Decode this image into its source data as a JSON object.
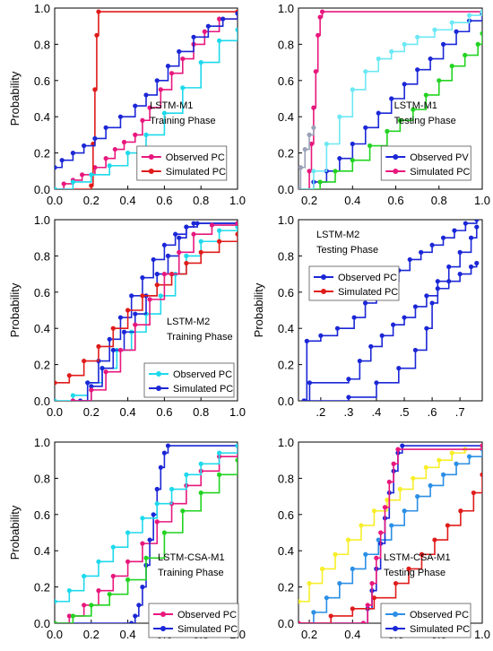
{
  "figure": {
    "background": "#ffffff"
  },
  "chart_data": [
    {
      "type": "line",
      "title": "LSTM-M1",
      "subtitle": "Training Phase",
      "ylabel": "Probability",
      "xlim": [
        0.0,
        1.0
      ],
      "ylim": [
        0.0,
        1.0
      ],
      "x_ticks": [
        "0.0",
        "0.2",
        "0.4",
        "0.6",
        "0.8",
        "1.0"
      ],
      "y_ticks": [
        "0.0",
        "0.2",
        "0.4",
        "0.6",
        "0.8",
        "1.0"
      ],
      "grid": false,
      "legend_position": "lower-right",
      "legend": [
        {
          "label": "Observed PC",
          "color": "#e8177d"
        },
        {
          "label": "Simulated PC",
          "color": "#e01b1b"
        }
      ],
      "series": [
        {
          "name": "Observed PC",
          "color": "#e8177d",
          "x": [
            0.0,
            0.05,
            0.1,
            0.15,
            0.22,
            0.28,
            0.33,
            0.38,
            0.44,
            0.48,
            0.52,
            0.58,
            0.64,
            0.7,
            0.76,
            0.82,
            0.9,
            1.0
          ],
          "y": [
            0.0,
            0.03,
            0.05,
            0.08,
            0.12,
            0.17,
            0.22,
            0.26,
            0.3,
            0.38,
            0.45,
            0.55,
            0.64,
            0.72,
            0.8,
            0.87,
            0.94,
            0.97
          ]
        },
        {
          "name": "Simulated PC",
          "color": "#e01b1b",
          "x": [
            0.0,
            0.2,
            0.21,
            0.22,
            0.23,
            0.24,
            1.0
          ],
          "y": [
            0.0,
            0.02,
            0.25,
            0.55,
            0.85,
            0.98,
            0.98
          ]
        },
        {
          "name": "",
          "color": "#1b27d6",
          "x": [
            0.0,
            0.04,
            0.1,
            0.16,
            0.22,
            0.28,
            0.36,
            0.44,
            0.5,
            0.56,
            0.62,
            0.68,
            0.76,
            0.84,
            0.92,
            1.0
          ],
          "y": [
            0.12,
            0.16,
            0.2,
            0.24,
            0.28,
            0.34,
            0.4,
            0.46,
            0.52,
            0.6,
            0.68,
            0.76,
            0.84,
            0.9,
            0.94,
            0.97
          ]
        },
        {
          "name": "",
          "color": "#1ed9ec",
          "x": [
            0.0,
            0.1,
            0.2,
            0.3,
            0.4,
            0.5,
            0.6,
            0.7,
            0.8,
            0.9,
            1.0
          ],
          "y": [
            0.0,
            0.04,
            0.08,
            0.13,
            0.2,
            0.3,
            0.42,
            0.56,
            0.7,
            0.82,
            0.88
          ]
        }
      ]
    },
    {
      "type": "line",
      "title": "LSTM-M1",
      "subtitle": "Testing Phase",
      "ylabel": "",
      "xlim": [
        0.15,
        1.0
      ],
      "ylim": [
        0.0,
        1.0
      ],
      "x_ticks": [
        "0.2",
        "0.4",
        "0.6",
        "0.8",
        "1.0"
      ],
      "y_ticks": [
        "0.0",
        "0.2",
        "0.4",
        "0.6",
        "0.8",
        "1.0"
      ],
      "grid": false,
      "legend_position": "lower-right",
      "legend": [
        {
          "label": "Observed PV",
          "color": "#1b27d6"
        },
        {
          "label": "Simulated PC",
          "color": "#e8177d"
        }
      ],
      "series": [
        {
          "name": "Observed PV",
          "color": "#1b27d6",
          "x": [
            0.15,
            0.22,
            0.28,
            0.34,
            0.4,
            0.46,
            0.52,
            0.58,
            0.64,
            0.7,
            0.76,
            0.82,
            0.88,
            0.94,
            1.0
          ],
          "y": [
            0.0,
            0.04,
            0.1,
            0.17,
            0.25,
            0.34,
            0.42,
            0.5,
            0.58,
            0.66,
            0.72,
            0.8,
            0.87,
            0.93,
            0.97
          ]
        },
        {
          "name": "Simulated PC",
          "color": "#e8177d",
          "x": [
            0.15,
            0.2,
            0.21,
            0.22,
            0.23,
            0.24,
            0.25,
            0.26,
            1.0
          ],
          "y": [
            0.0,
            0.1,
            0.25,
            0.45,
            0.65,
            0.85,
            0.95,
            0.98,
            0.98
          ]
        },
        {
          "name": "",
          "color": "#22d322",
          "x": [
            0.15,
            0.25,
            0.32,
            0.4,
            0.48,
            0.56,
            0.62,
            0.68,
            0.74,
            0.8,
            0.86,
            0.92,
            0.98,
            1.0
          ],
          "y": [
            0.0,
            0.04,
            0.1,
            0.16,
            0.24,
            0.32,
            0.38,
            0.44,
            0.52,
            0.6,
            0.68,
            0.74,
            0.8,
            0.86
          ]
        },
        {
          "name": "",
          "color": "#6ce8f4",
          "x": [
            0.15,
            0.22,
            0.28,
            0.34,
            0.4,
            0.46,
            0.52,
            0.58,
            0.64,
            0.7,
            0.78,
            0.86,
            0.94,
            1.0
          ],
          "y": [
            0.0,
            0.1,
            0.25,
            0.4,
            0.55,
            0.65,
            0.72,
            0.76,
            0.8,
            0.84,
            0.88,
            0.92,
            0.96,
            0.98
          ]
        },
        {
          "name": "",
          "color": "#9aa0b8",
          "x": [
            0.15,
            0.16,
            0.18,
            0.2,
            0.22
          ],
          "y": [
            0.0,
            0.12,
            0.22,
            0.3,
            0.34
          ]
        }
      ]
    },
    {
      "type": "line",
      "title": "LSTM-M2",
      "subtitle": "Training Phase",
      "ylabel": "Probability",
      "xlim": [
        0.0,
        1.0
      ],
      "ylim": [
        0.0,
        1.0
      ],
      "x_ticks": [
        "0.0",
        "0.2",
        "0.4",
        "0.6",
        "0.8",
        "1.0"
      ],
      "y_ticks": [
        "0.0",
        "0.2",
        "0.4",
        "0.6",
        "0.8",
        "1.0"
      ],
      "grid": false,
      "legend_position": "lower-right",
      "legend": [
        {
          "label": "Observed PC",
          "color": "#1ed9ec"
        },
        {
          "label": "Simulated PC",
          "color": "#1b27d6"
        }
      ],
      "series": [
        {
          "name": "Observed PC",
          "color": "#1ed9ec",
          "x": [
            0.0,
            0.1,
            0.18,
            0.26,
            0.34,
            0.42,
            0.5,
            0.58,
            0.66,
            0.72,
            0.8,
            0.9,
            1.0
          ],
          "y": [
            0.0,
            0.03,
            0.1,
            0.18,
            0.28,
            0.38,
            0.48,
            0.58,
            0.7,
            0.8,
            0.88,
            0.94,
            0.96
          ]
        },
        {
          "name": "Simulated PC",
          "color": "#1b27d6",
          "x": [
            0.14,
            0.2,
            0.26,
            0.32,
            0.38,
            0.44,
            0.5,
            0.56,
            0.62,
            0.68,
            0.72,
            0.76,
            1.0
          ],
          "y": [
            0.0,
            0.08,
            0.18,
            0.28,
            0.38,
            0.48,
            0.58,
            0.7,
            0.8,
            0.9,
            0.96,
            0.98,
            0.98
          ]
        },
        {
          "name": "",
          "color": "#1b27d6",
          "x": [
            0.1,
            0.18,
            0.24,
            0.3,
            0.36,
            0.42,
            0.48,
            0.54,
            0.6,
            0.66,
            0.72,
            0.78,
            1.0
          ],
          "y": [
            0.0,
            0.1,
            0.22,
            0.34,
            0.46,
            0.58,
            0.68,
            0.78,
            0.86,
            0.92,
            0.96,
            0.98,
            0.98
          ]
        },
        {
          "name": "",
          "color": "#e01b1b",
          "x": [
            0.0,
            0.08,
            0.16,
            0.24,
            0.32,
            0.4,
            0.48,
            0.56,
            0.64,
            0.72,
            0.8,
            0.9,
            1.0
          ],
          "y": [
            0.1,
            0.14,
            0.22,
            0.3,
            0.4,
            0.5,
            0.58,
            0.64,
            0.7,
            0.76,
            0.82,
            0.88,
            0.92
          ]
        },
        {
          "name": "",
          "color": "#e8177d",
          "x": [
            0.1,
            0.2,
            0.28,
            0.36,
            0.44,
            0.52,
            0.6,
            0.68,
            0.76,
            0.86,
            1.0
          ],
          "y": [
            0.0,
            0.06,
            0.16,
            0.28,
            0.42,
            0.56,
            0.7,
            0.82,
            0.92,
            0.97,
            0.98
          ]
        }
      ]
    },
    {
      "type": "line",
      "title": "LSTM-M2",
      "subtitle": "Testing Phase",
      "ylabel": "Probability",
      "xlim": [
        0.12,
        0.78
      ],
      "ylim": [
        0.0,
        1.0
      ],
      "x_ticks": [
        ".2",
        ".3",
        ".4",
        ".5",
        ".6",
        ".7"
      ],
      "y_ticks": [
        "0.0",
        "0.2",
        "0.4",
        "0.6",
        "0.8",
        "1.0"
      ],
      "grid": false,
      "legend_position": "top-left",
      "legend": [
        {
          "label": "Observed PC",
          "color": "#1b27d6"
        },
        {
          "label": "Simulated PC",
          "color": "#e01b1b"
        }
      ],
      "series": [
        {
          "name": "Observed PC",
          "color": "#1b27d6",
          "x": [
            0.14,
            0.15,
            0.2,
            0.26,
            0.32,
            0.36,
            0.4,
            0.44,
            0.48,
            0.52,
            0.56,
            0.6,
            0.64,
            0.68,
            0.72,
            0.76
          ],
          "y": [
            0.0,
            0.33,
            0.36,
            0.4,
            0.46,
            0.54,
            0.6,
            0.66,
            0.72,
            0.78,
            0.82,
            0.86,
            0.9,
            0.94,
            0.98,
            1.0
          ]
        },
        {
          "name": "",
          "color": "#1b27d6",
          "x": [
            0.14,
            0.16,
            0.3,
            0.34,
            0.38,
            0.42,
            0.46,
            0.5,
            0.54,
            0.58,
            0.62,
            0.66,
            0.7,
            0.74,
            0.76
          ],
          "y": [
            0.0,
            0.1,
            0.12,
            0.22,
            0.3,
            0.36,
            0.42,
            0.46,
            0.52,
            0.58,
            0.66,
            0.74,
            0.82,
            0.9,
            0.96
          ]
        },
        {
          "name": "",
          "color": "#1b27d6",
          "x": [
            0.14,
            0.3,
            0.4,
            0.48,
            0.54,
            0.58,
            0.6,
            0.62,
            0.66,
            0.7,
            0.74,
            0.76
          ],
          "y": [
            0.0,
            0.02,
            0.1,
            0.18,
            0.28,
            0.4,
            0.54,
            0.62,
            0.66,
            0.7,
            0.74,
            0.76
          ]
        }
      ]
    },
    {
      "type": "line",
      "title": "LSTM-CSA-M1",
      "subtitle": "Training Phase",
      "ylabel": "Probability",
      "xlim": [
        0.0,
        1.0
      ],
      "ylim": [
        0.0,
        1.0
      ],
      "x_ticks": [
        "0.0",
        "0.2",
        "0.4",
        "0.6",
        "0.8",
        "1.0"
      ],
      "y_ticks": [
        "0.0",
        "0.2",
        "0.4",
        "0.6",
        "0.8",
        "1.0"
      ],
      "grid": false,
      "legend_position": "lower-right",
      "legend": [
        {
          "label": "Observed PC",
          "color": "#e8177d"
        },
        {
          "label": "Simulated PC",
          "color": "#1b27d6"
        }
      ],
      "series": [
        {
          "name": "Observed PC",
          "color": "#e8177d",
          "x": [
            0.0,
            0.08,
            0.16,
            0.24,
            0.32,
            0.4,
            0.48,
            0.56,
            0.64,
            0.72,
            0.8,
            0.9,
            1.0
          ],
          "y": [
            0.0,
            0.04,
            0.1,
            0.18,
            0.26,
            0.34,
            0.44,
            0.56,
            0.66,
            0.76,
            0.84,
            0.92,
            0.98
          ]
        },
        {
          "name": "Simulated PC",
          "color": "#1b27d6",
          "x": [
            0.0,
            0.42,
            0.44,
            0.46,
            0.48,
            0.5,
            0.52,
            0.54,
            0.56,
            0.58,
            0.6,
            0.62,
            1.0
          ],
          "y": [
            0.0,
            0.0,
            0.04,
            0.1,
            0.2,
            0.32,
            0.46,
            0.6,
            0.74,
            0.86,
            0.94,
            0.98,
            0.98
          ]
        },
        {
          "name": "",
          "color": "#1ed9ec",
          "x": [
            0.0,
            0.08,
            0.16,
            0.24,
            0.32,
            0.4,
            0.48,
            0.56,
            0.64,
            0.72,
            0.8,
            0.9,
            1.0
          ],
          "y": [
            0.12,
            0.18,
            0.26,
            0.34,
            0.42,
            0.5,
            0.58,
            0.66,
            0.74,
            0.82,
            0.88,
            0.94,
            0.98
          ]
        },
        {
          "name": "",
          "color": "#22d322",
          "x": [
            0.0,
            0.1,
            0.2,
            0.3,
            0.4,
            0.5,
            0.6,
            0.7,
            0.8,
            0.9,
            1.0
          ],
          "y": [
            0.0,
            0.04,
            0.1,
            0.16,
            0.24,
            0.36,
            0.5,
            0.62,
            0.72,
            0.82,
            0.9
          ]
        }
      ]
    },
    {
      "type": "line",
      "title": "LSTM-CSA-M1",
      "subtitle": "Testing Phase",
      "ylabel": "",
      "xlim": [
        0.15,
        1.0
      ],
      "ylim": [
        0.0,
        1.0
      ],
      "x_ticks": [
        "0.2",
        "0.4",
        "0.6",
        "0.8",
        "1.0"
      ],
      "y_ticks": [
        "0.0",
        "0.2",
        "0.4",
        "0.6",
        "0.8",
        "1.0"
      ],
      "grid": false,
      "legend_position": "lower-right",
      "legend": [
        {
          "label": "Observed PC",
          "color": "#2b8fe6"
        },
        {
          "label": "Simulated PC",
          "color": "#1b27d6"
        }
      ],
      "series": [
        {
          "name": "Observed PC",
          "color": "#2b8fe6",
          "x": [
            0.15,
            0.22,
            0.28,
            0.34,
            0.4,
            0.46,
            0.52,
            0.58,
            0.64,
            0.7,
            0.76,
            0.82,
            0.88,
            0.94,
            1.0
          ],
          "y": [
            0.0,
            0.06,
            0.14,
            0.22,
            0.3,
            0.38,
            0.46,
            0.54,
            0.62,
            0.7,
            0.76,
            0.82,
            0.88,
            0.92,
            0.96
          ]
        },
        {
          "name": "Simulated PC",
          "color": "#1b27d6",
          "x": [
            0.15,
            0.45,
            0.47,
            0.49,
            0.51,
            0.53,
            0.55,
            0.57,
            0.59,
            0.61,
            0.63,
            1.0
          ],
          "y": [
            0.0,
            0.0,
            0.08,
            0.18,
            0.3,
            0.44,
            0.58,
            0.72,
            0.84,
            0.94,
            0.98,
            0.98
          ]
        },
        {
          "name": "",
          "color": "#f7ee2a",
          "x": [
            0.15,
            0.2,
            0.26,
            0.32,
            0.38,
            0.44,
            0.5,
            0.56,
            0.62,
            0.68,
            0.74,
            0.8,
            0.86,
            0.92,
            1.0
          ],
          "y": [
            0.12,
            0.22,
            0.3,
            0.38,
            0.46,
            0.54,
            0.62,
            0.68,
            0.74,
            0.8,
            0.86,
            0.9,
            0.94,
            0.96,
            0.98
          ]
        },
        {
          "name": "",
          "color": "#e01b1b",
          "x": [
            0.15,
            0.3,
            0.4,
            0.5,
            0.6,
            0.66,
            0.72,
            0.78,
            0.84,
            0.9,
            0.96,
            1.0
          ],
          "y": [
            0.0,
            0.04,
            0.08,
            0.14,
            0.22,
            0.3,
            0.38,
            0.46,
            0.54,
            0.62,
            0.72,
            0.82
          ]
        },
        {
          "name": "",
          "color": "#e8177d",
          "x": [
            0.15,
            0.45,
            0.47,
            0.49,
            0.51,
            0.53,
            0.55,
            0.57,
            0.59,
            0.61,
            1.0
          ],
          "y": [
            0.0,
            0.0,
            0.1,
            0.22,
            0.36,
            0.5,
            0.64,
            0.78,
            0.88,
            0.96,
            0.98
          ]
        }
      ]
    }
  ]
}
